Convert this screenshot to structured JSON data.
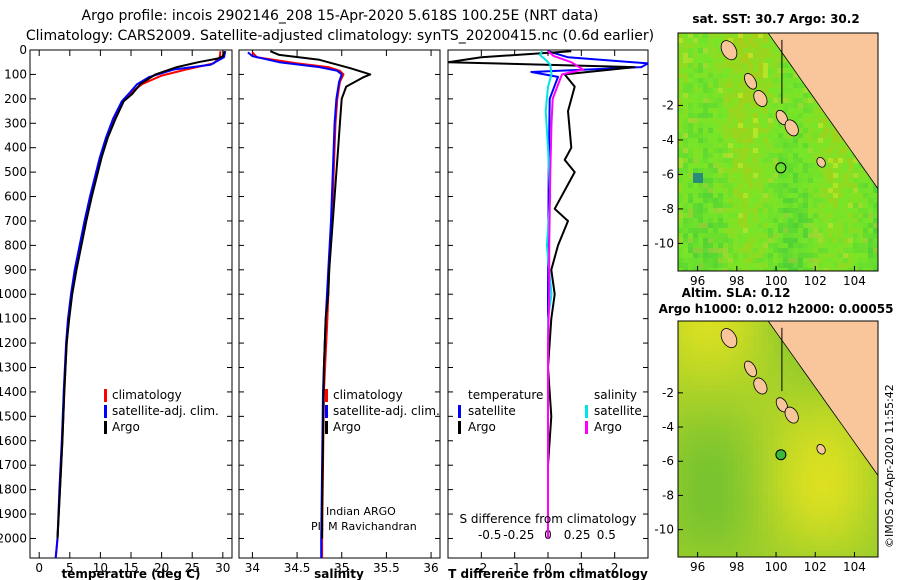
{
  "header": {
    "line1": "Argo profile: incois 2902146_208 15-Apr-2020 5.618S 100.25E (NRT data)",
    "line2": "Climatology: CARS2009. Satellite-adjusted climatology: synTS_20200415.nc (0.6d earlier)"
  },
  "colors": {
    "climatology": "#ff0000",
    "satellite": "#0000ff",
    "argo": "#000000",
    "sal_diff_satellite": "#00e5e5",
    "sal_diff_argo": "#ff00ff",
    "land": "#f8c69a"
  },
  "chart_data": [
    {
      "type": "line",
      "id": "temperature",
      "xlabel": "temperature (deg C)",
      "ylabel": "",
      "xlim": [
        -1.5,
        31.5
      ],
      "ylim": [
        2080,
        0
      ],
      "xticks": [
        0,
        5,
        10,
        15,
        20,
        25,
        30
      ],
      "xtick_labels": [
        "0",
        "5",
        "10",
        "15",
        "20",
        "25",
        "30"
      ],
      "yticks": [
        0,
        100,
        200,
        300,
        400,
        500,
        600,
        700,
        800,
        900,
        1000,
        1100,
        1200,
        1300,
        1400,
        1500,
        1600,
        1700,
        1800,
        1900,
        2000
      ],
      "ytick_labels": [
        "0",
        "100",
        "200",
        "300",
        "400",
        "500",
        "600",
        "700",
        "800",
        "900",
        "1000",
        "1100",
        "1200",
        "1300",
        "1400",
        "1500",
        "1600",
        "1700",
        "1800",
        "1900",
        "2000"
      ],
      "legend": [
        "climatology",
        "satellite-adj. clim.",
        "Argo"
      ],
      "series": [
        {
          "name": "climatology",
          "color_key": "climatology",
          "points": [
            [
              29.6,
              5
            ],
            [
              29.5,
              30
            ],
            [
              28.5,
              55
            ],
            [
              24,
              80
            ],
            [
              20,
              105
            ],
            [
              16.8,
              140
            ],
            [
              15,
              175
            ],
            [
              13.6,
              210
            ],
            [
              12.2,
              280
            ],
            [
              11,
              360
            ],
            [
              10,
              440
            ],
            [
              9.2,
              520
            ],
            [
              8.4,
              600
            ],
            [
              7.5,
              700
            ],
            [
              6.7,
              800
            ],
            [
              5.9,
              900
            ],
            [
              5.3,
              1000
            ],
            [
              4.8,
              1100
            ],
            [
              4.5,
              1200
            ],
            [
              4.1,
              1400
            ],
            [
              3.8,
              1600
            ],
            [
              3.4,
              1800
            ],
            [
              3.0,
              2000
            ],
            [
              2.7,
              2080
            ]
          ]
        },
        {
          "name": "satellite-adj. clim.",
          "color_key": "satellite",
          "points": [
            [
              30.4,
              5
            ],
            [
              30.2,
              30
            ],
            [
              28,
              60
            ],
            [
              22,
              80
            ],
            [
              18,
              110
            ],
            [
              16,
              140
            ],
            [
              14.8,
              175
            ],
            [
              13.5,
              210
            ],
            [
              12.1,
              280
            ],
            [
              10.9,
              360
            ],
            [
              9.9,
              440
            ],
            [
              9.1,
              520
            ],
            [
              8.3,
              600
            ],
            [
              7.4,
              700
            ],
            [
              6.6,
              800
            ],
            [
              5.8,
              900
            ],
            [
              5.2,
              1000
            ],
            [
              4.7,
              1100
            ],
            [
              4.4,
              1200
            ],
            [
              4.0,
              1400
            ],
            [
              3.7,
              1600
            ],
            [
              3.3,
              1800
            ],
            [
              3.0,
              2000
            ],
            [
              2.7,
              2080
            ]
          ]
        },
        {
          "name": "Argo",
          "color_key": "argo",
          "points": [
            [
              30.3,
              5
            ],
            [
              30,
              25
            ],
            [
              29.2,
              35
            ],
            [
              26,
              50
            ],
            [
              22.5,
              70
            ],
            [
              19,
              100
            ],
            [
              16.5,
              140
            ],
            [
              15.2,
              180
            ],
            [
              13.8,
              210
            ],
            [
              12.5,
              280
            ],
            [
              11.2,
              360
            ],
            [
              10.2,
              440
            ],
            [
              9.4,
              520
            ],
            [
              8.6,
              600
            ],
            [
              7.7,
              700
            ],
            [
              6.9,
              800
            ],
            [
              6.1,
              900
            ],
            [
              5.4,
              1000
            ],
            [
              4.9,
              1100
            ],
            [
              4.5,
              1200
            ],
            [
              4.1,
              1400
            ],
            [
              3.8,
              1600
            ],
            [
              3.4,
              1800
            ],
            [
              3.0,
              2000
            ]
          ]
        }
      ]
    },
    {
      "type": "line",
      "id": "salinity",
      "xlabel": "salinity",
      "ylabel": "",
      "xlim": [
        33.85,
        36.1
      ],
      "ylim": [
        2080,
        0
      ],
      "xticks": [
        34,
        34.5,
        35,
        35.5,
        36
      ],
      "xtick_labels": [
        "34",
        "34.5",
        "35",
        "35.5",
        "36"
      ],
      "legend": [
        "climatology",
        "satellite-adj. clim.",
        "Argo"
      ],
      "annotations": [
        "Indian ARGO",
        "PI: M Ravichandran"
      ],
      "series": [
        {
          "name": "climatology",
          "color_key": "climatology",
          "points": [
            [
              34.0,
              10
            ],
            [
              34.05,
              30
            ],
            [
              34.5,
              55
            ],
            [
              34.85,
              70
            ],
            [
              34.98,
              85
            ],
            [
              35.02,
              100
            ],
            [
              34.98,
              130
            ],
            [
              34.95,
              200
            ],
            [
              34.93,
              300
            ],
            [
              34.91,
              500
            ],
            [
              34.89,
              700
            ],
            [
              34.86,
              900
            ],
            [
              34.84,
              1100
            ],
            [
              34.8,
              1400
            ],
            [
              34.79,
              1700
            ],
            [
              34.78,
              2000
            ],
            [
              34.78,
              2080
            ]
          ]
        },
        {
          "name": "satellite-adj. clim.",
          "color_key": "satellite",
          "points": [
            [
              33.95,
              10
            ],
            [
              34.0,
              25
            ],
            [
              34.3,
              50
            ],
            [
              34.75,
              70
            ],
            [
              34.95,
              85
            ],
            [
              35.0,
              100
            ],
            [
              34.97,
              130
            ],
            [
              34.94,
              200
            ],
            [
              34.92,
              300
            ],
            [
              34.9,
              500
            ],
            [
              34.88,
              700
            ],
            [
              34.85,
              900
            ],
            [
              34.82,
              1100
            ],
            [
              34.79,
              1400
            ],
            [
              34.78,
              1700
            ],
            [
              34.77,
              2000
            ],
            [
              34.77,
              2080
            ]
          ]
        },
        {
          "name": "Argo",
          "color_key": "argo",
          "points": [
            [
              34.2,
              5
            ],
            [
              34.3,
              20
            ],
            [
              34.75,
              40
            ],
            [
              34.95,
              60
            ],
            [
              35.1,
              75
            ],
            [
              35.32,
              100
            ],
            [
              35.25,
              110
            ],
            [
              35.05,
              150
            ],
            [
              35.0,
              200
            ],
            [
              34.98,
              300
            ],
            [
              34.96,
              400
            ],
            [
              34.94,
              500
            ],
            [
              34.92,
              600
            ],
            [
              34.9,
              700
            ],
            [
              34.88,
              800
            ],
            [
              34.86,
              900
            ],
            [
              34.85,
              1000
            ],
            [
              34.82,
              1100
            ],
            [
              34.8,
              1300
            ],
            [
              34.79,
              1600
            ],
            [
              34.78,
              1900
            ],
            [
              34.78,
              2000
            ]
          ]
        }
      ]
    },
    {
      "type": "line",
      "id": "difference",
      "xlabel": "T difference from climatology",
      "ylabel": "",
      "xlim": [
        -3,
        3
      ],
      "ylim": [
        2080,
        0
      ],
      "xticks": [
        -2,
        -1,
        0,
        1,
        2
      ],
      "xtick_labels": [
        "-2",
        "-1",
        "0",
        "1",
        "2"
      ],
      "secondary_title": "S difference from climatology",
      "secondary_xlim": [
        -0.857,
        0.857
      ],
      "secondary_xticks": [
        -0.5,
        -0.25,
        0,
        0.25,
        0.5
      ],
      "secondary_xtick_labels": [
        "-0.5",
        "-0.25",
        "0",
        "0.25",
        "0.5"
      ],
      "legend_temperature_title": "temperature",
      "legend_salinity_title": "salinity",
      "legend": [
        "satellite",
        "Argo"
      ],
      "series": [
        {
          "name": "T satellite",
          "color_key": "satellite",
          "points": [
            [
              0,
              5
            ],
            [
              0.6,
              30
            ],
            [
              3,
              55
            ],
            [
              2.8,
              70
            ],
            [
              -0.5,
              90
            ],
            [
              0.3,
              110
            ],
            [
              0.05,
              200
            ],
            [
              0.02,
              500
            ],
            [
              0,
              1000
            ],
            [
              0,
              2000
            ]
          ]
        },
        {
          "name": "T Argo",
          "color_key": "argo",
          "points": [
            [
              0.7,
              5
            ],
            [
              -2,
              30
            ],
            [
              -3,
              50
            ],
            [
              2.6,
              70
            ],
            [
              0.5,
              100
            ],
            [
              0.8,
              150
            ],
            [
              0.6,
              250
            ],
            [
              0.7,
              400
            ],
            [
              0.5,
              450
            ],
            [
              0.8,
              500
            ],
            [
              0.2,
              650
            ],
            [
              0.6,
              700
            ],
            [
              0.3,
              800
            ],
            [
              0.1,
              900
            ],
            [
              0.2,
              1000
            ],
            [
              0.1,
              1100
            ],
            [
              0,
              1300
            ],
            [
              0.1,
              1500
            ],
            [
              0,
              1700
            ],
            [
              0,
              2000
            ]
          ]
        },
        {
          "name": "S satellite",
          "color_key": "sal_diff_satellite",
          "points": [
            [
              -0.05,
              5
            ],
            [
              -0.07,
              20
            ],
            [
              -0.02,
              40
            ],
            [
              0.02,
              60
            ],
            [
              0.03,
              100
            ],
            [
              0,
              150
            ],
            [
              -0.02,
              250
            ],
            [
              0,
              400
            ],
            [
              0.02,
              600
            ],
            [
              -0.01,
              800
            ],
            [
              0.03,
              1000
            ],
            [
              0,
              1100
            ],
            [
              0,
              1400
            ],
            [
              0,
              1700
            ],
            [
              0,
              2000
            ]
          ]
        },
        {
          "name": "S Argo",
          "color_key": "sal_diff_argo",
          "points": [
            [
              0,
              5
            ],
            [
              0.05,
              25
            ],
            [
              0.2,
              50
            ],
            [
              0.3,
              80
            ],
            [
              0.12,
              100
            ],
            [
              0.08,
              150
            ],
            [
              0.04,
              200
            ],
            [
              0.03,
              300
            ],
            [
              0.02,
              500
            ],
            [
              0.01,
              800
            ],
            [
              0.01,
              1000
            ],
            [
              0,
              1200
            ],
            [
              0,
              1500
            ],
            [
              0,
              1800
            ],
            [
              0,
              2000
            ]
          ]
        }
      ]
    },
    {
      "type": "heatmap",
      "id": "sst_map",
      "title": "sat. SST: 30.7 Argo: 30.2",
      "xlim": [
        95,
        105.2
      ],
      "ylim": [
        -11.6,
        2.2
      ],
      "xticks": [
        96,
        98,
        100,
        102,
        104
      ],
      "xtick_labels": [
        "96",
        "98",
        "100",
        "102",
        "104"
      ],
      "yticks": [
        -2,
        -4,
        -6,
        -8,
        -10
      ],
      "ytick_labels": [
        "-2",
        "-4",
        "-6",
        "-8",
        "-10"
      ],
      "marker": {
        "lon": 100.25,
        "lat": -5.618
      }
    },
    {
      "type": "heatmap",
      "id": "sla_map",
      "title_line1": "Altim. SLA: 0.12",
      "title_line2": "Argo h1000: 0.012 h2000: 0.00055",
      "xlim": [
        95,
        105.2
      ],
      "ylim": [
        -11.6,
        2.2
      ],
      "xticks": [
        96,
        98,
        100,
        102,
        104
      ],
      "xtick_labels": [
        "96",
        "98",
        "100",
        "102",
        "104"
      ],
      "yticks": [
        -2,
        -4,
        -6,
        -8,
        -10
      ],
      "ytick_labels": [
        "-2",
        "-4",
        "-6",
        "-8",
        "-10"
      ],
      "marker": {
        "lon": 100.25,
        "lat": -5.618
      }
    }
  ],
  "footer": {
    "stamp": "©IMOS 20-Apr-2020 11:55:42"
  }
}
